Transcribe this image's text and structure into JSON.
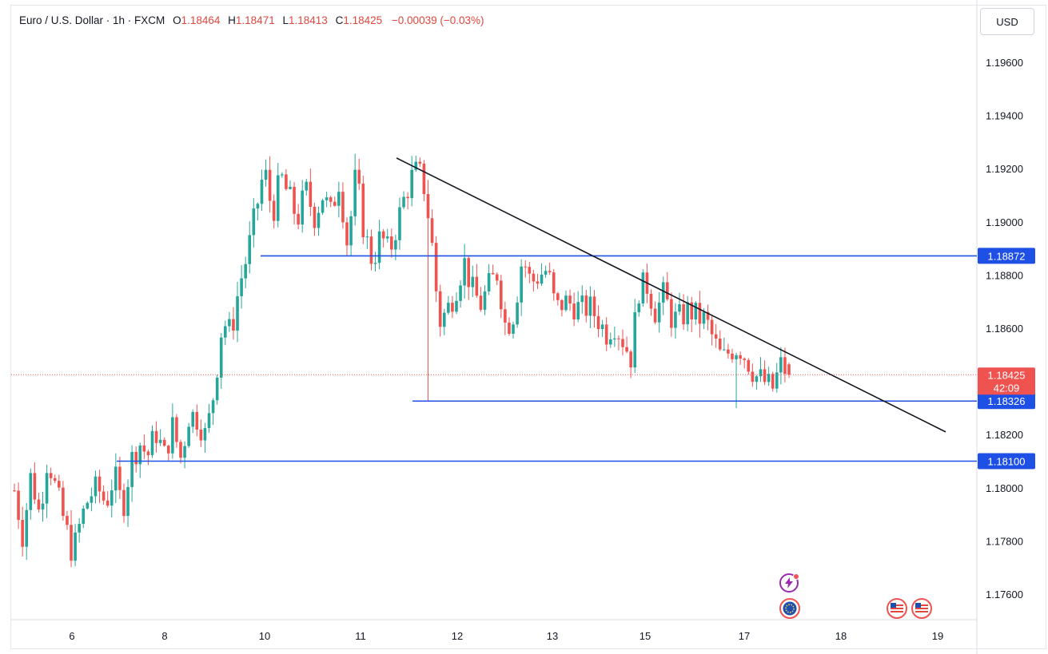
{
  "header": {
    "symbol": "Euro / U.S. Dollar · 1h · FXCM",
    "open_label": "O",
    "open": "1.18464",
    "high_label": "H",
    "high": "1.18471",
    "low_label": "L",
    "low": "1.18413",
    "close_label": "C",
    "close": "1.18425",
    "change": "−0.00039 (−0.03%)"
  },
  "currency_button": "USD",
  "colors": {
    "up": "#26a69a",
    "down": "#ef5350",
    "level": "#1e50e6",
    "trend": "#131722",
    "price": "#ef5350"
  },
  "chart_data": {
    "type": "candlestick",
    "title": "Euro / U.S. Dollar · 1h · FXCM",
    "y_axis": {
      "ticks": [
        "1.19600",
        "1.19400",
        "1.19200",
        "1.19000",
        "1.18800",
        "1.18600",
        "1.18200",
        "1.18000",
        "1.17800",
        "1.17600"
      ],
      "range": [
        1.1752,
        1.1983
      ]
    },
    "x_axis": {
      "ticks": [
        "6",
        "8",
        "10",
        "11",
        "12",
        "13",
        "15",
        "17",
        "18",
        "19"
      ]
    },
    "horizontal_levels": [
      {
        "price": 1.18872,
        "label": "1.18872"
      },
      {
        "price": 1.18326,
        "label": "1.18326"
      },
      {
        "price": 1.181,
        "label": "1.18100"
      }
    ],
    "current_price": {
      "label": "1.18425",
      "countdown": "42:09",
      "value": 1.18425
    },
    "trendline": {
      "start_value": 1.1924,
      "end_value": 1.1821
    },
    "price_path": [
      1.1799,
      1.1782,
      1.1805,
      1.179,
      1.1812,
      1.1799,
      1.1787,
      1.1775,
      1.1788,
      1.1797,
      1.18,
      1.1794,
      1.1805,
      1.1792,
      1.181,
      1.1817,
      1.1812,
      1.1821,
      1.1812,
      1.1823,
      1.1811,
      1.1828,
      1.1826,
      1.1819,
      1.1837,
      1.1863,
      1.1858,
      1.1876,
      1.1888,
      1.1904,
      1.192,
      1.1903,
      1.1917,
      1.1909,
      1.1901,
      1.1912,
      1.1902,
      1.191,
      1.1903,
      1.1916,
      1.1891,
      1.1918,
      1.1896,
      1.1885,
      1.1895,
      1.1888,
      1.19,
      1.1911,
      1.1919,
      1.1917,
      1.1896,
      1.1862,
      1.1867,
      1.1875,
      1.1885,
      1.1874,
      1.1869,
      1.1876,
      1.1881,
      1.186,
      1.1866,
      1.1887,
      1.1877,
      1.188,
      1.1882,
      1.1867,
      1.187,
      1.1869,
      1.1867,
      1.1868,
      1.1864,
      1.1858,
      1.1862,
      1.1856,
      1.1849,
      1.1875,
      1.1876,
      1.1866,
      1.1873,
      1.1863,
      1.1864,
      1.1867,
      1.1864,
      1.1863,
      1.1855,
      1.1848,
      1.1852,
      1.1853,
      1.1848,
      1.1842,
      1.184,
      1.1837,
      1.1846,
      1.1843
    ],
    "volatile_sections": [
      "12 spike low near 1.18326",
      "17 dip to 1.1830"
    ]
  },
  "events": {
    "flash_icon": "lightning-event-icon",
    "eu_flag_icon": "eu-flag-icon",
    "us_flag_icons": [
      "us-flag-icon",
      "us-flag-icon"
    ]
  }
}
